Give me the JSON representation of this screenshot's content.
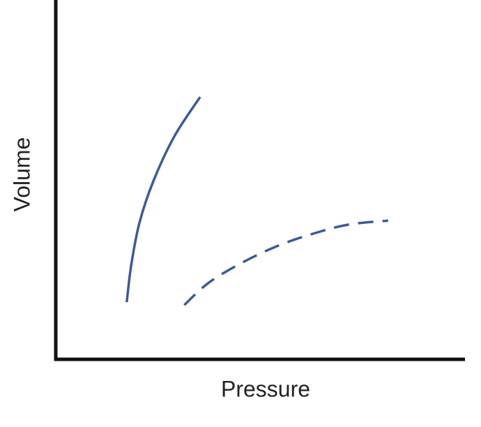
{
  "chart_data": {
    "type": "line",
    "xlabel": "Pressure",
    "ylabel": "Volume",
    "xlim": [
      0,
      100
    ],
    "ylim": [
      0,
      100
    ],
    "series": [
      {
        "color": "#3a5a9c",
        "dash": false,
        "x": [
          17.4,
          18.5,
          20.5,
          23.9,
          29.1,
          35.4
        ],
        "values": [
          15.9,
          26.2,
          37.9,
          49.5,
          62.1,
          73.0
        ]
      },
      {
        "color": "#3a5a9c",
        "dash": true,
        "x": [
          31.5,
          37.6,
          46.2,
          54.7,
          63.2,
          71.8,
          81.5
        ],
        "values": [
          15.1,
          21.4,
          27.2,
          31.7,
          35.0,
          37.5,
          38.6
        ]
      }
    ]
  }
}
